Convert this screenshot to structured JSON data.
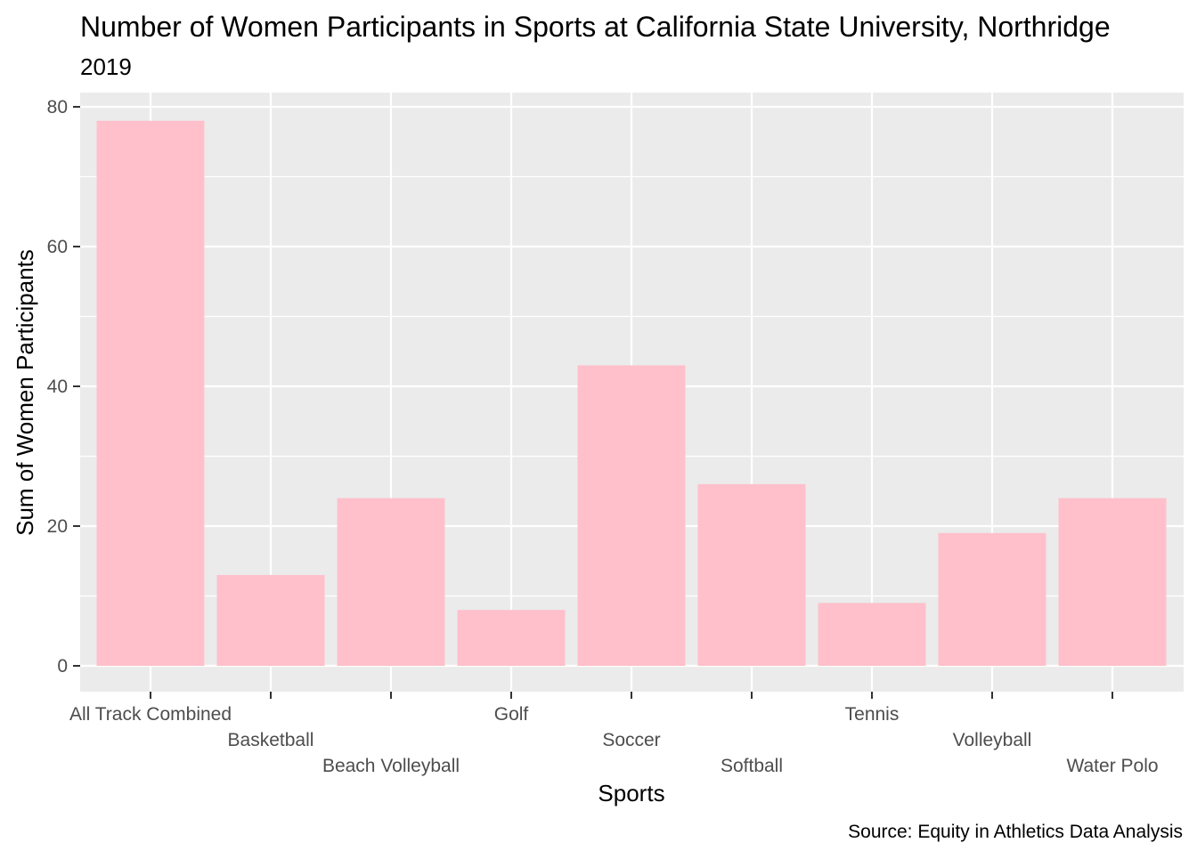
{
  "chart_data": {
    "type": "bar",
    "title": "Number of Women Participants in Sports at California State University, Northridge",
    "subtitle": "2019",
    "xlabel": "Sports",
    "ylabel": "Sum of Women Participants",
    "caption": "Source: Equity in Athletics Data Analysis",
    "categories": [
      "All Track Combined",
      "Basketball",
      "Beach Volleyball",
      "Golf",
      "Soccer",
      "Softball",
      "Tennis",
      "Volleyball",
      "Water Polo"
    ],
    "values": [
      78,
      13,
      24,
      8,
      43,
      26,
      9,
      19,
      24
    ],
    "y_ticks": [
      "0",
      "20",
      "40",
      "60",
      "80"
    ],
    "ylim": [
      0,
      80
    ],
    "grid": true,
    "legend": "none",
    "colors": {
      "bar": "#ffc0cb",
      "panel": "#ebebeb",
      "grid": "#ffffff",
      "tick_text": "#4d4d4d",
      "tick_mark": "#333333"
    }
  }
}
